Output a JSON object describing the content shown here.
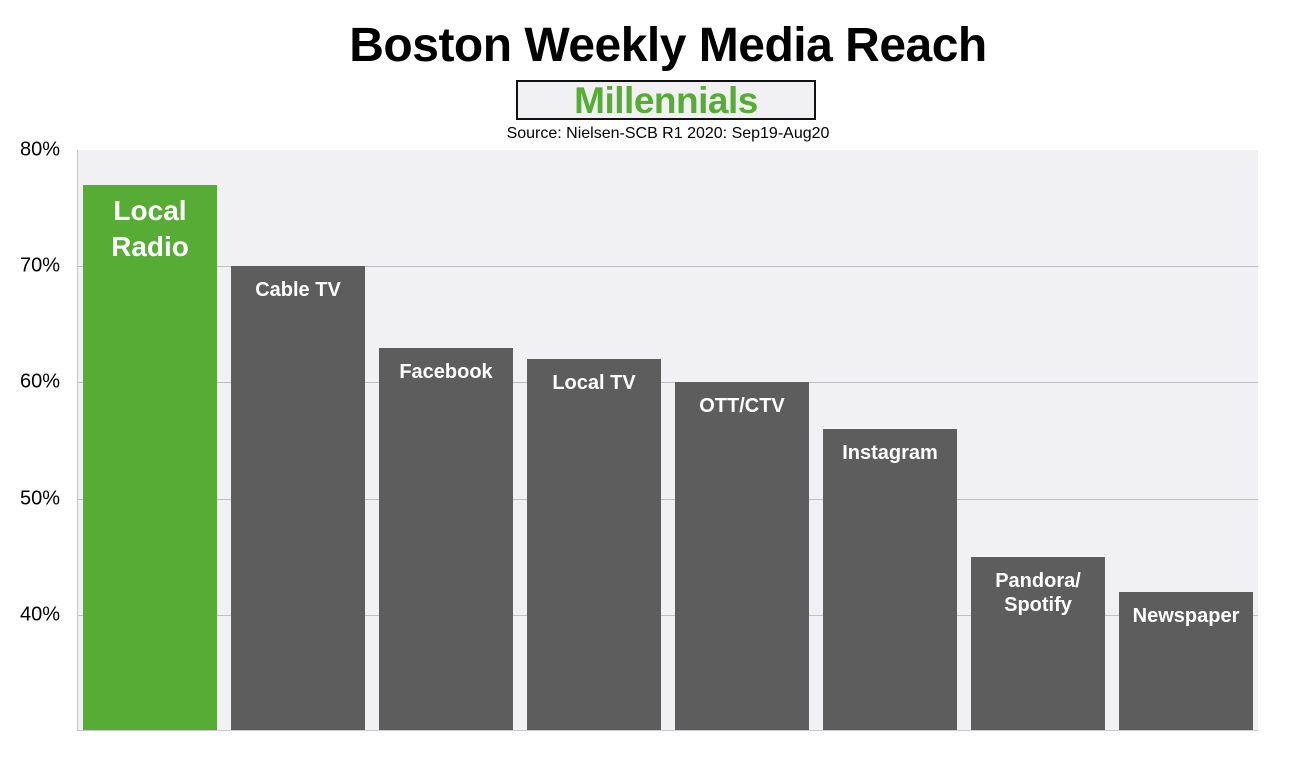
{
  "chart_data": {
    "type": "bar",
    "title": "Boston Weekly Media Reach",
    "subtitle": "Millennials",
    "source": "Source: Nielsen-SCB R1 2020: Sep19-Aug20",
    "xlabel": "",
    "ylabel": "",
    "ylim": [
      30,
      80
    ],
    "yticks": [
      "80%",
      "70%",
      "60%",
      "50%",
      "40%"
    ],
    "grid": true,
    "legend": null,
    "categories": [
      "Local Radio",
      "Cable TV",
      "Facebook",
      "Local TV",
      "OTT/CTV",
      "Instagram",
      "Pandora/Spotify",
      "Newspaper"
    ],
    "values": [
      77,
      70,
      63,
      62,
      60,
      56,
      45,
      42
    ],
    "highlight_index": 0,
    "colors": {
      "highlight": "#56ac34",
      "bar": "#5d5d5d",
      "plot_bg": "#f1f1f4"
    }
  },
  "bar_labels": [
    "Local\nRadio",
    "Cable TV",
    "Facebook",
    "Local TV",
    "OTT/CTV",
    "Instagram",
    "Pandora/\nSpotify",
    "Newspaper"
  ]
}
